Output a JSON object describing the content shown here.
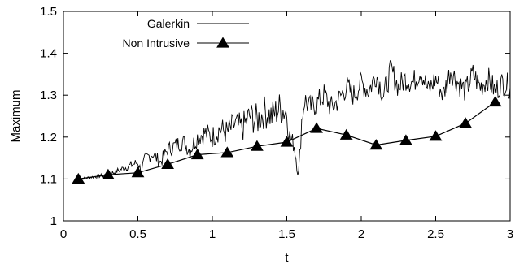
{
  "chart_data": {
    "type": "line",
    "xlabel": "t",
    "ylabel": "Maximum",
    "xlim": [
      0,
      3
    ],
    "ylim": [
      1,
      1.5
    ],
    "xticks": [
      "0",
      "0.5",
      "1",
      "1.5",
      "2",
      "2.5",
      "3"
    ],
    "yticks": [
      "1",
      "1.1",
      "1.2",
      "1.3",
      "1.4",
      "1.5"
    ],
    "grid": false,
    "legend": "top-left",
    "series": [
      {
        "name": "Galerkin",
        "style": "line",
        "color": "#000000",
        "x": [
          0.1,
          0.2,
          0.3,
          0.4,
          0.5,
          0.52,
          0.55,
          0.6,
          0.65,
          0.7,
          0.75,
          0.8,
          0.85,
          0.9,
          0.95,
          1.0,
          1.05,
          1.1,
          1.15,
          1.2,
          1.25,
          1.3,
          1.35,
          1.4,
          1.45,
          1.5,
          1.52,
          1.55,
          1.58,
          1.6,
          1.62,
          1.65,
          1.7,
          1.75,
          1.8,
          1.85,
          1.9,
          1.95,
          2.0,
          2.05,
          2.1,
          2.15,
          2.2,
          2.25,
          2.3,
          2.35,
          2.4,
          2.45,
          2.5,
          2.55,
          2.6,
          2.65,
          2.7,
          2.75,
          2.8,
          2.85,
          2.9,
          2.95,
          3.0
        ],
        "y": [
          1.1,
          1.105,
          1.11,
          1.125,
          1.14,
          1.12,
          1.15,
          1.16,
          1.14,
          1.17,
          1.18,
          1.19,
          1.17,
          1.2,
          1.21,
          1.2,
          1.22,
          1.21,
          1.23,
          1.22,
          1.25,
          1.24,
          1.26,
          1.25,
          1.27,
          1.26,
          1.2,
          1.18,
          1.11,
          1.24,
          1.29,
          1.27,
          1.28,
          1.3,
          1.27,
          1.29,
          1.32,
          1.3,
          1.33,
          1.31,
          1.35,
          1.3,
          1.36,
          1.32,
          1.34,
          1.33,
          1.36,
          1.31,
          1.34,
          1.3,
          1.36,
          1.33,
          1.31,
          1.35,
          1.32,
          1.34,
          1.31,
          1.33,
          1.32
        ],
        "noise": [
          0.002,
          0.004,
          0.006,
          0.008,
          0.012,
          0.012,
          0.014,
          0.016,
          0.016,
          0.018,
          0.02,
          0.022,
          0.022,
          0.024,
          0.026,
          0.028,
          0.03,
          0.032,
          0.034,
          0.036,
          0.038,
          0.04,
          0.04,
          0.04,
          0.04,
          0.04,
          0.03,
          0.02,
          0.02,
          0.03,
          0.03,
          0.03,
          0.03,
          0.03,
          0.03,
          0.03,
          0.03,
          0.03,
          0.03,
          0.03,
          0.03,
          0.03,
          0.03,
          0.03,
          0.03,
          0.03,
          0.03,
          0.03,
          0.03,
          0.03,
          0.03,
          0.03,
          0.03,
          0.03,
          0.03,
          0.03,
          0.03,
          0.03,
          0.03
        ]
      },
      {
        "name": "Non Intrusive",
        "style": "line-triangle",
        "color": "#000000",
        "x": [
          0.1,
          0.3,
          0.5,
          0.7,
          0.9,
          1.1,
          1.3,
          1.5,
          1.7,
          1.9,
          2.1,
          2.3,
          2.5,
          2.7,
          2.9
        ],
        "y": [
          1.1,
          1.11,
          1.115,
          1.135,
          1.158,
          1.163,
          1.178,
          1.188,
          1.221,
          1.205,
          1.181,
          1.192,
          1.202,
          1.233,
          1.284
        ]
      }
    ]
  }
}
